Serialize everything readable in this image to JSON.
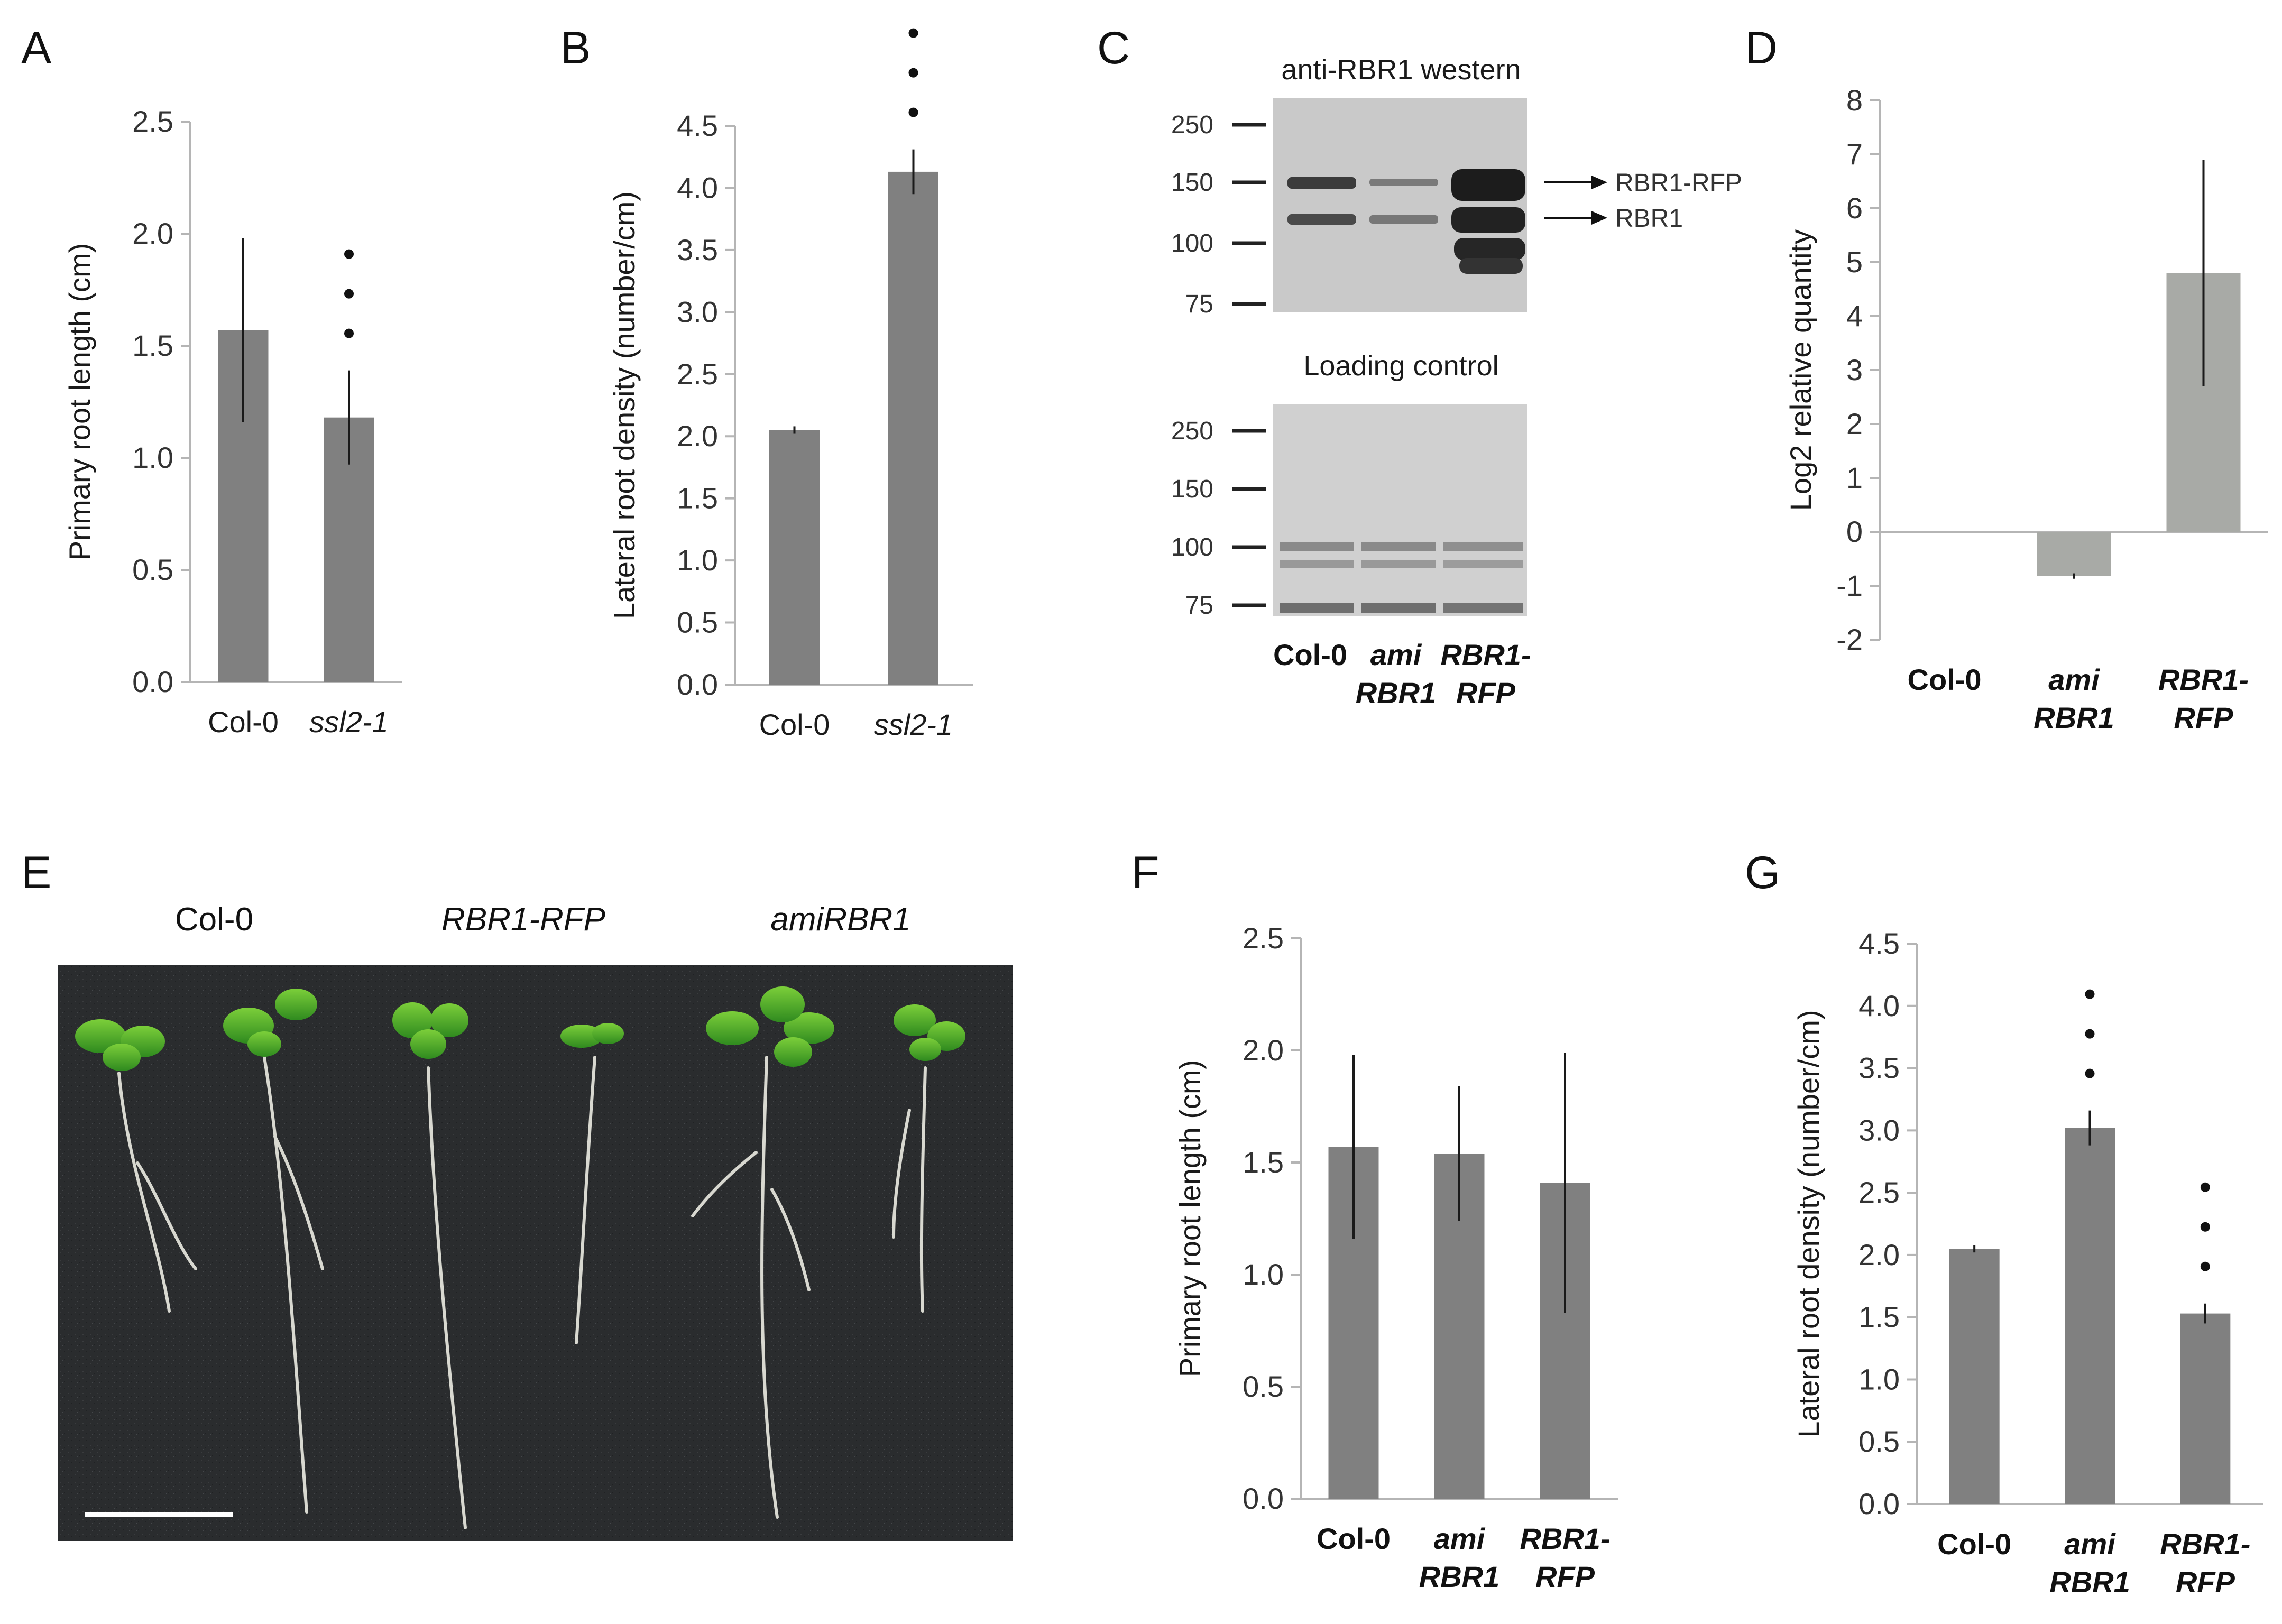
{
  "panels": {
    "A": {
      "letter": "A"
    },
    "B": {
      "letter": "B"
    },
    "C": {
      "letter": "C",
      "western_title": "anti-RBR1 western",
      "loading_title": "Loading control",
      "markers_top": [
        "250",
        "150",
        "100",
        "75"
      ],
      "markers_bottom": [
        "250",
        "150",
        "100",
        "75"
      ],
      "arrow_labels": [
        "RBR1-RFP",
        "RBR1"
      ],
      "lanes": [
        {
          "line1": "Col-0",
          "line2": ""
        },
        {
          "line1": "ami",
          "line2": "RBR1"
        },
        {
          "line1": "RBR1-",
          "line2": "RFP"
        }
      ]
    },
    "D": {
      "letter": "D"
    },
    "E": {
      "letter": "E",
      "labels": [
        "Col-0",
        "RBR1-RFP",
        "amiRBR1"
      ]
    },
    "F": {
      "letter": "F"
    },
    "G": {
      "letter": "G"
    }
  },
  "chart_data": [
    {
      "id": "A",
      "type": "bar",
      "categories": [
        "Col-0",
        "ssl2-1"
      ],
      "values": [
        1.57,
        1.18
      ],
      "errors": [
        0.41,
        0.21
      ],
      "significance": [
        "",
        "•••"
      ],
      "ylabel": "Primary root length (cm)",
      "ylim": [
        0,
        2.5
      ],
      "yticks": [
        "0.0",
        "0.5",
        "1.0",
        "1.5",
        "2.0",
        "2.5"
      ],
      "bar_color": "#808080"
    },
    {
      "id": "B",
      "type": "bar",
      "categories": [
        "Col-0",
        "ssl2-1"
      ],
      "values": [
        2.05,
        4.13
      ],
      "errors": [
        0.03,
        0.18
      ],
      "significance": [
        "",
        "•••"
      ],
      "ylabel": "Lateral root density (number/cm)",
      "ylim": [
        0,
        4.5
      ],
      "yticks": [
        "0.0",
        "0.5",
        "1.0",
        "1.5",
        "2.0",
        "2.5",
        "3.0",
        "3.5",
        "4.0",
        "4.5"
      ],
      "bar_color": "#808080"
    },
    {
      "id": "D",
      "type": "bar",
      "categories": [
        "Col-0",
        "ami RBR1",
        "RBR1- RFP"
      ],
      "values": [
        0,
        -0.82,
        4.8
      ],
      "errors": [
        0,
        0.05,
        2.1
      ],
      "ylabel": "Log2 relative quantity",
      "ylim": [
        -2,
        8
      ],
      "yticks": [
        "-2",
        "-1",
        "0",
        "1",
        "2",
        "3",
        "4",
        "5",
        "6",
        "7",
        "8"
      ],
      "bar_color": "#a8aaa6"
    },
    {
      "id": "F",
      "type": "bar",
      "categories": [
        "Col-0",
        "ami RBR1",
        "RBR1- RFP"
      ],
      "values": [
        1.57,
        1.54,
        1.41
      ],
      "errors": [
        0.41,
        0.3,
        0.58
      ],
      "significance": [
        "",
        "",
        ""
      ],
      "ylabel": "Primary root length (cm)",
      "ylim": [
        0,
        2.5
      ],
      "yticks": [
        "0.0",
        "0.5",
        "1.0",
        "1.5",
        "2.0",
        "2.5"
      ],
      "bar_color": "#808080"
    },
    {
      "id": "G",
      "type": "bar",
      "categories": [
        "Col-0",
        "ami RBR1",
        "RBR1- RFP"
      ],
      "values": [
        2.05,
        3.02,
        1.53
      ],
      "errors": [
        0.03,
        0.14,
        0.08
      ],
      "significance": [
        "",
        "•••",
        "•••"
      ],
      "ylabel": "Lateral root density (number/cm)",
      "ylim": [
        0,
        4.5
      ],
      "yticks": [
        "0.0",
        "0.5",
        "1.0",
        "1.5",
        "2.0",
        "2.5",
        "3.0",
        "3.5",
        "4.0",
        "4.5"
      ],
      "bar_color": "#808080"
    }
  ]
}
